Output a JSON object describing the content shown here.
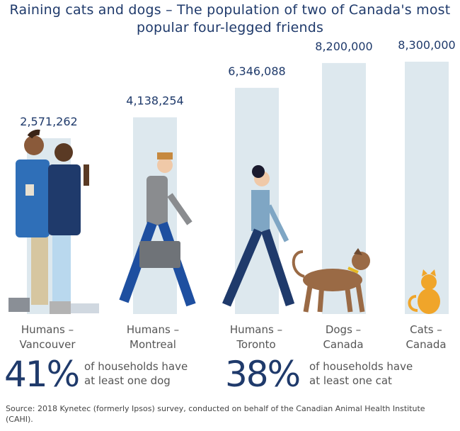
{
  "title": "Raining cats and dogs – The population of two of Canada's most popular four-legged friends",
  "chart_data": {
    "type": "bar",
    "title": "Raining cats and dogs – The population of two of Canada's most popular four-legged friends",
    "categories": [
      "Humans – Vancouver",
      "Humans – Montreal",
      "Humans – Toronto",
      "Dogs – Canada",
      "Cats – Canada"
    ],
    "category_lines": [
      [
        "Humans –",
        "Vancouver"
      ],
      [
        "Humans –",
        "Montreal"
      ],
      [
        "Humans –",
        "Toronto"
      ],
      [
        "Dogs –",
        "Canada"
      ],
      [
        "Cats –",
        "Canada"
      ]
    ],
    "values": [
      2571262,
      4138254,
      6346088,
      8200000,
      8300000
    ],
    "value_labels": [
      "2,571,262",
      "4,138,254",
      "6,346,088",
      "8,200,000",
      "8,300,000"
    ],
    "xlabel": "",
    "ylabel": "",
    "grid": false,
    "bar_color": "#dde8ee",
    "label_color": "#1f3a6b"
  },
  "stats": [
    {
      "value": "41%",
      "line1": "of households have",
      "line2": "at least one dog"
    },
    {
      "value": "38%",
      "line1": "of households have",
      "line2": "at least one cat"
    }
  ],
  "source": "Source: 2018 Kynetec (formerly Ipsos) survey, conducted on behalf of the Canadian Animal Health Institute (CAHI)."
}
